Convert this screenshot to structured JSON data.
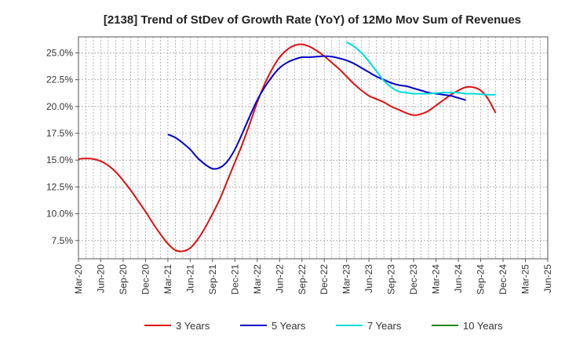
{
  "chart_data": {
    "type": "line",
    "title": "[2138]  Trend of StDev of Growth Rate (YoY) of 12Mo Mov Sum of Revenues",
    "xlabel": "",
    "ylabel": "",
    "x_ticks": [
      "Mar-20",
      "Jun-20",
      "Sep-20",
      "Dec-20",
      "Mar-21",
      "Jun-21",
      "Sep-21",
      "Dec-21",
      "Mar-22",
      "Jun-22",
      "Sep-22",
      "Dec-22",
      "Mar-23",
      "Jun-23",
      "Sep-23",
      "Dec-23",
      "Mar-24",
      "Jun-24",
      "Sep-24",
      "Dec-24",
      "Mar-25",
      "Jun-25"
    ],
    "y_ticks": [
      "7.5%",
      "10.0%",
      "12.5%",
      "15.0%",
      "17.5%",
      "20.0%",
      "22.5%",
      "25.0%"
    ],
    "y_tick_values": [
      7.5,
      10.0,
      12.5,
      15.0,
      17.5,
      20.0,
      22.5,
      25.0
    ],
    "ylim": [
      5.8,
      26.5
    ],
    "grid": true,
    "legend_position": "bottom",
    "series": [
      {
        "name": "3 Years",
        "color": "#dd1111",
        "start_index": 0,
        "values": [
          15.1,
          15.15,
          15.1,
          14.9,
          14.5,
          13.9,
          13.1,
          12.2,
          11.2,
          10.2,
          9.1,
          8.1,
          7.2,
          6.6,
          6.5,
          6.8,
          7.6,
          8.7,
          10.0,
          11.4,
          13.1,
          14.8,
          16.5,
          18.4,
          20.4,
          22.1,
          23.5,
          24.6,
          25.3,
          25.7,
          25.8,
          25.6,
          25.2,
          24.7,
          24.1,
          23.5,
          22.8,
          22.1,
          21.5,
          21.0,
          20.7,
          20.4,
          20.0,
          19.7,
          19.4,
          19.2,
          19.3,
          19.6,
          20.1,
          20.6,
          21.1,
          21.5,
          21.8,
          21.8,
          21.5,
          20.7,
          19.4
        ]
      },
      {
        "name": "5 Years",
        "color": "#0000cc",
        "start_index": 12,
        "values": [
          17.4,
          17.1,
          16.6,
          16.0,
          15.2,
          14.6,
          14.2,
          14.3,
          14.9,
          16.0,
          17.5,
          19.1,
          20.6,
          21.8,
          22.8,
          23.6,
          24.1,
          24.4,
          24.6,
          24.6,
          24.65,
          24.7,
          24.65,
          24.5,
          24.3,
          24.0,
          23.6,
          23.2,
          22.8,
          22.5,
          22.2,
          22.0,
          21.9,
          21.7,
          21.5,
          21.3,
          21.2,
          21.1,
          21.0,
          20.8,
          20.6
        ]
      },
      {
        "name": "7 Years",
        "color": "#00dddd",
        "start_index": 36,
        "values": [
          26.0,
          25.6,
          25.0,
          24.2,
          23.3,
          22.4,
          21.8,
          21.4,
          21.3,
          21.2,
          21.2,
          21.2,
          21.25,
          21.3,
          21.3,
          21.3,
          21.2,
          21.2,
          21.15,
          21.1,
          21.1
        ]
      },
      {
        "name": "10 Years",
        "color": "#228822",
        "start_index": 0,
        "values": []
      }
    ]
  }
}
